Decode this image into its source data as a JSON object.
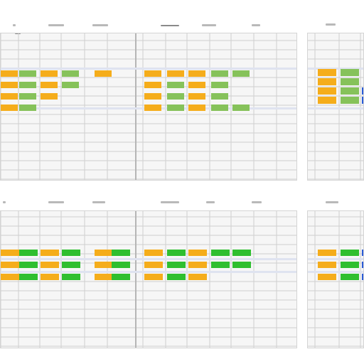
{
  "colors": {
    "orange": "#f5ad1b",
    "light_green": "#86c25a",
    "green": "#2fbf2f",
    "blue": "#2a5bd7",
    "grid": "#cfcfcf",
    "band": "#dfe3f0"
  },
  "panels": [
    {
      "name": "top-left-sheet",
      "bars": [
        [
          "orange",
          "light_green",
          "orange",
          "light_green",
          "blank",
          "orange",
          "blank",
          "orange",
          "orange",
          "orange",
          "light_green",
          "light_green"
        ],
        [
          "orange",
          "light_green",
          "orange",
          "light_green",
          "blank",
          "blank",
          "blank",
          "orange",
          "light_green",
          "orange",
          "light_green",
          "blank"
        ],
        [
          "orange",
          "light_green",
          "orange",
          "blank",
          "blank",
          "blank",
          "blank",
          "orange",
          "light_green",
          "orange",
          "light_green",
          "blank"
        ],
        [
          "orange",
          "light_green",
          "blank",
          "blank",
          "blank",
          "blank",
          "blank",
          "orange",
          "light_green",
          "orange",
          "light_green",
          "light_green"
        ]
      ]
    },
    {
      "name": "top-right-sheet",
      "bars": [
        [
          "orange",
          "light_green",
          "blank"
        ],
        [
          "orange",
          "light_green",
          "blank"
        ],
        [
          "orange",
          "light_green",
          "blue"
        ],
        [
          "orange",
          "light_green",
          "blue"
        ]
      ]
    },
    {
      "name": "bottom-left-sheet",
      "bars": [
        [
          "orange",
          "green",
          "orange",
          "green",
          "orange",
          "green",
          "orange",
          "green",
          "orange",
          "green",
          "green"
        ],
        [
          "orange",
          "green",
          "orange",
          "green",
          "orange",
          "green",
          "orange",
          "green",
          "orange",
          "green",
          "green"
        ],
        [
          "orange",
          "green",
          "orange",
          "green",
          "orange",
          "green",
          "orange",
          "green",
          "orange",
          "blank",
          "blank"
        ]
      ]
    },
    {
      "name": "bottom-right-sheet",
      "bars": [
        [
          "orange",
          "green",
          "blue"
        ],
        [
          "orange",
          "green",
          "blue"
        ],
        [
          "orange",
          "green",
          "blue"
        ]
      ]
    }
  ]
}
